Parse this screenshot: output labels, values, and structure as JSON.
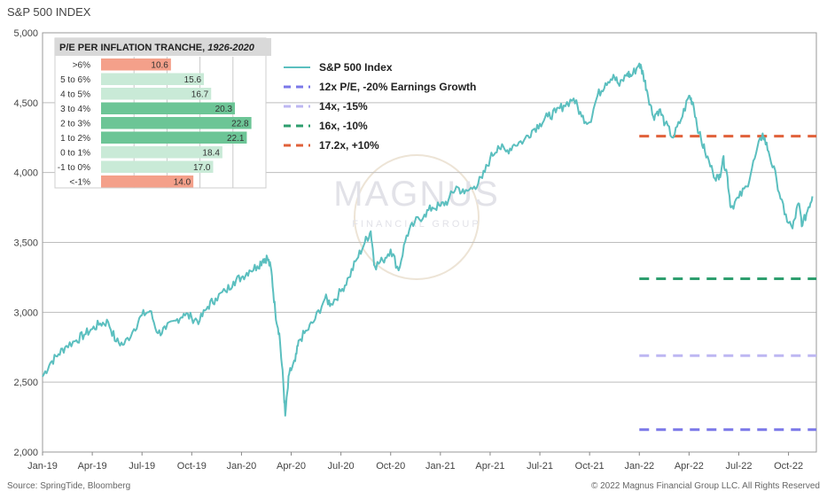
{
  "chart_data": {
    "type": "line",
    "title": "S&P 500 INDEX",
    "ylim": [
      2000,
      5000
    ],
    "yticks": [
      2000,
      2500,
      3000,
      3500,
      4000,
      4500,
      5000
    ],
    "ytick_labels": [
      "2,000",
      "2,500",
      "3,000",
      "3,500",
      "4,000",
      "4,500",
      "5,000"
    ],
    "xlim": [
      2019.0,
      2022.89
    ],
    "xticks": [
      {
        "t": 2019.0,
        "label": "Jan-19"
      },
      {
        "t": 2019.25,
        "label": "Apr-19"
      },
      {
        "t": 2019.5,
        "label": "Jul-19"
      },
      {
        "t": 2019.75,
        "label": "Oct-19"
      },
      {
        "t": 2020.0,
        "label": "Jan-20"
      },
      {
        "t": 2020.25,
        "label": "Apr-20"
      },
      {
        "t": 2020.5,
        "label": "Jul-20"
      },
      {
        "t": 2020.75,
        "label": "Oct-20"
      },
      {
        "t": 2021.0,
        "label": "Jan-21"
      },
      {
        "t": 2021.25,
        "label": "Apr-21"
      },
      {
        "t": 2021.5,
        "label": "Jul-21"
      },
      {
        "t": 2021.75,
        "label": "Oct-21"
      },
      {
        "t": 2022.0,
        "label": "Jan-22"
      },
      {
        "t": 2022.25,
        "label": "Apr-22"
      },
      {
        "t": 2022.5,
        "label": "Jul-22"
      },
      {
        "t": 2022.75,
        "label": "Oct-22"
      }
    ],
    "series": [
      {
        "name": "S&P 500 Index",
        "color": "#5bbfbf",
        "points": [
          [
            2019.0,
            2540
          ],
          [
            2019.04,
            2640
          ],
          [
            2019.08,
            2700
          ],
          [
            2019.12,
            2760
          ],
          [
            2019.17,
            2800
          ],
          [
            2019.21,
            2840
          ],
          [
            2019.25,
            2880
          ],
          [
            2019.29,
            2920
          ],
          [
            2019.33,
            2930
          ],
          [
            2019.37,
            2790
          ],
          [
            2019.41,
            2770
          ],
          [
            2019.46,
            2880
          ],
          [
            2019.5,
            2980
          ],
          [
            2019.54,
            3010
          ],
          [
            2019.58,
            2850
          ],
          [
            2019.62,
            2880
          ],
          [
            2019.67,
            2940
          ],
          [
            2019.71,
            2990
          ],
          [
            2019.75,
            2960
          ],
          [
            2019.79,
            2940
          ],
          [
            2019.83,
            3040
          ],
          [
            2019.87,
            3100
          ],
          [
            2019.92,
            3150
          ],
          [
            2019.96,
            3220
          ],
          [
            2020.0,
            3250
          ],
          [
            2020.04,
            3300
          ],
          [
            2020.08,
            3330
          ],
          [
            2020.11,
            3380
          ],
          [
            2020.13,
            3390
          ],
          [
            2020.15,
            3300
          ],
          [
            2020.17,
            3000
          ],
          [
            2020.19,
            2850
          ],
          [
            2020.21,
            2500
          ],
          [
            2020.22,
            2260
          ],
          [
            2020.24,
            2560
          ],
          [
            2020.27,
            2650
          ],
          [
            2020.29,
            2800
          ],
          [
            2020.33,
            2870
          ],
          [
            2020.37,
            2950
          ],
          [
            2020.42,
            3100
          ],
          [
            2020.45,
            3060
          ],
          [
            2020.5,
            3150
          ],
          [
            2020.54,
            3250
          ],
          [
            2020.58,
            3380
          ],
          [
            2020.62,
            3500
          ],
          [
            2020.65,
            3580
          ],
          [
            2020.67,
            3330
          ],
          [
            2020.71,
            3370
          ],
          [
            2020.75,
            3450
          ],
          [
            2020.79,
            3300
          ],
          [
            2020.83,
            3550
          ],
          [
            2020.87,
            3640
          ],
          [
            2020.92,
            3700
          ],
          [
            2020.96,
            3750
          ],
          [
            2021.0,
            3760
          ],
          [
            2021.04,
            3800
          ],
          [
            2021.08,
            3900
          ],
          [
            2021.12,
            3850
          ],
          [
            2021.17,
            3900
          ],
          [
            2021.21,
            3960
          ],
          [
            2021.25,
            4100
          ],
          [
            2021.29,
            4190
          ],
          [
            2021.33,
            4150
          ],
          [
            2021.37,
            4200
          ],
          [
            2021.42,
            4230
          ],
          [
            2021.46,
            4300
          ],
          [
            2021.5,
            4350
          ],
          [
            2021.54,
            4400
          ],
          [
            2021.58,
            4430
          ],
          [
            2021.62,
            4480
          ],
          [
            2021.67,
            4530
          ],
          [
            2021.71,
            4400
          ],
          [
            2021.75,
            4360
          ],
          [
            2021.79,
            4550
          ],
          [
            2021.83,
            4640
          ],
          [
            2021.87,
            4700
          ],
          [
            2021.9,
            4620
          ],
          [
            2021.94,
            4710
          ],
          [
            2021.96,
            4690
          ],
          [
            2022.0,
            4780
          ],
          [
            2022.02,
            4700
          ],
          [
            2022.04,
            4580
          ],
          [
            2022.07,
            4400
          ],
          [
            2022.1,
            4450
          ],
          [
            2022.13,
            4350
          ],
          [
            2022.17,
            4250
          ],
          [
            2022.21,
            4380
          ],
          [
            2022.25,
            4550
          ],
          [
            2022.27,
            4500
          ],
          [
            2022.3,
            4280
          ],
          [
            2022.33,
            4150
          ],
          [
            2022.37,
            4000
          ],
          [
            2022.4,
            3950
          ],
          [
            2022.42,
            4100
          ],
          [
            2022.44,
            4000
          ],
          [
            2022.46,
            3750
          ],
          [
            2022.5,
            3820
          ],
          [
            2022.54,
            3900
          ],
          [
            2022.58,
            4100
          ],
          [
            2022.62,
            4280
          ],
          [
            2022.65,
            4150
          ],
          [
            2022.69,
            3950
          ],
          [
            2022.73,
            3700
          ],
          [
            2022.77,
            3600
          ],
          [
            2022.8,
            3780
          ],
          [
            2022.82,
            3620
          ],
          [
            2022.85,
            3750
          ],
          [
            2022.87,
            3830
          ]
        ]
      }
    ],
    "reference_lines": [
      {
        "name": "12x P/E, -20% Earnings Growth",
        "value": 2160,
        "color": "#7b78e8",
        "x_start": 2022.0,
        "x_end": 2022.89
      },
      {
        "name": "14x, -15%",
        "value": 2690,
        "color": "#bdb7f2",
        "x_start": 2022.0,
        "x_end": 2022.89
      },
      {
        "name": "16x, -10%",
        "value": 3240,
        "color": "#2e9e6e",
        "x_start": 2022.0,
        "x_end": 2022.89
      },
      {
        "name": "17.2x, +10%",
        "value": 4260,
        "color": "#e0613a",
        "x_start": 2022.0,
        "x_end": 2022.89
      }
    ],
    "legend": {
      "position": "top-center",
      "entries": [
        "S&P 500 Index",
        "12x P/E, -20% Earnings Growth",
        "14x, -15%",
        "16x, -10%",
        "17.2x, +10%"
      ]
    },
    "inset": {
      "type": "bar",
      "orientation": "horizontal",
      "title": "P/E PER INFLATION TRANCHE,",
      "title_years": "1926-2020",
      "categories": [
        ">6%",
        "5 to 6%",
        "4 to 5%",
        "3 to 4%",
        "2 to 3%",
        "1 to 2%",
        "0 to 1%",
        "-1 to 0%",
        "<-1%"
      ],
      "values": [
        10.6,
        15.6,
        16.7,
        20.3,
        22.8,
        22.1,
        18.4,
        17.0,
        14.0
      ],
      "value_labels": [
        "10.6",
        "15.6",
        "16.7",
        "20.3",
        "22.8",
        "22.1",
        "18.4",
        "17.0",
        "14.0"
      ],
      "colors": [
        "#f4a08a",
        "#c9ead7",
        "#c9ead7",
        "#6cc596",
        "#6cc596",
        "#6cc596",
        "#c9ead7",
        "#c9ead7",
        "#f4a08a"
      ],
      "xlim": [
        0,
        25
      ]
    },
    "watermark": {
      "line1": "MAGNUS",
      "line2": "FINANCIAL GROUP"
    }
  },
  "footer": {
    "source": "Source: SpringTide, Bloomberg",
    "copyright": "© 2022 Magnus Financial Group LLC. All Rights Reserved"
  }
}
